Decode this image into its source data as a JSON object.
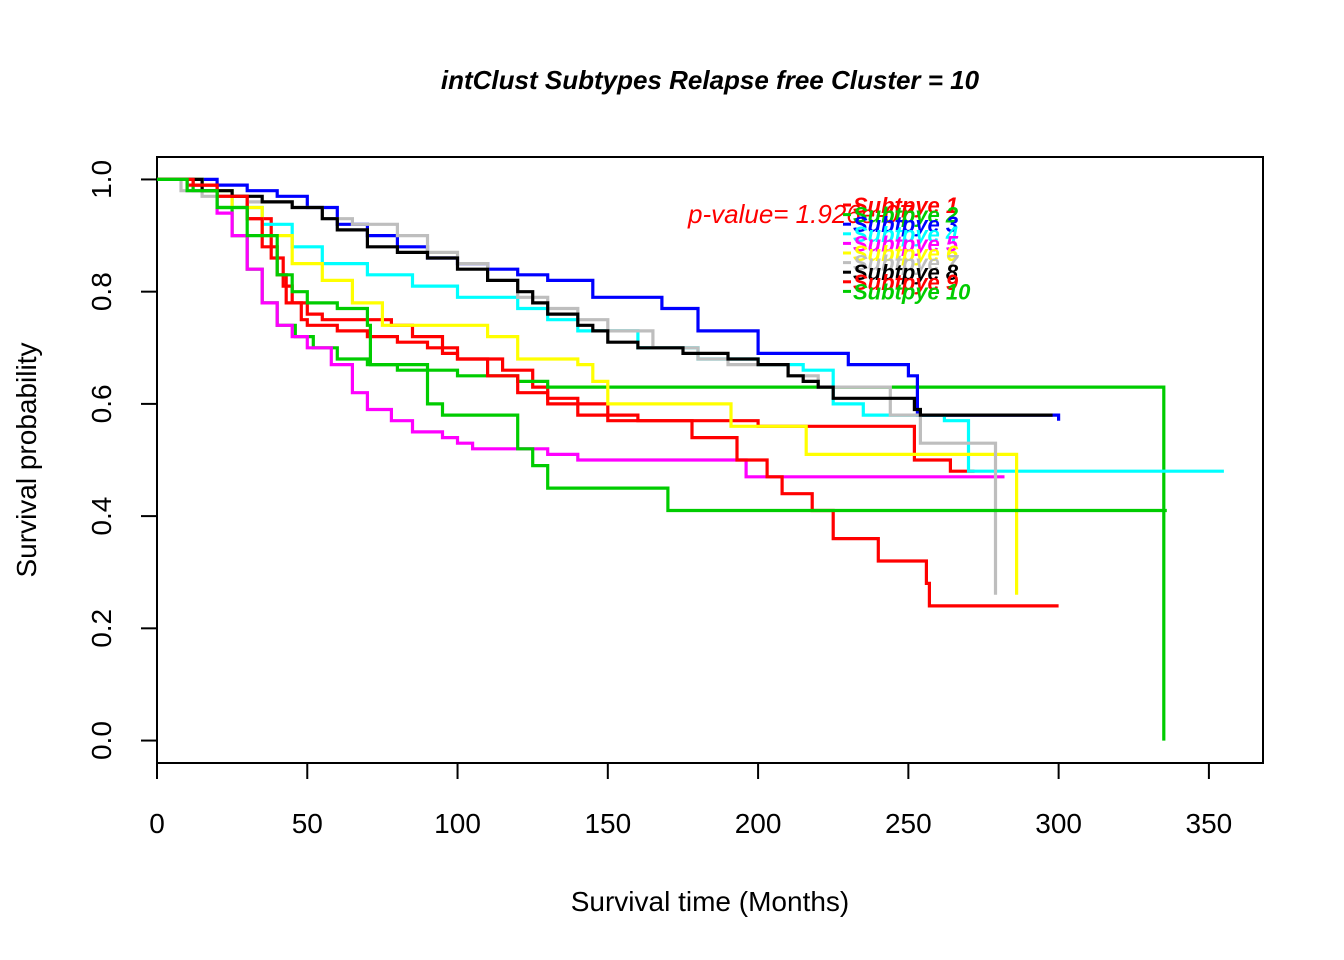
{
  "chart_data": {
    "type": "line",
    "title": "intClust Subtypes Relapse free Cluster = 10",
    "xlabel": "Survival time (Months)",
    "ylabel": "Survival probability",
    "xlim": [
      0,
      368
    ],
    "ylim": [
      -0.04,
      1.04
    ],
    "x_ticks": [
      "0",
      "50",
      "100",
      "150",
      "200",
      "250",
      "300",
      "350"
    ],
    "y_ticks": [
      "0.0",
      "0.2",
      "0.4",
      "0.6",
      "0.8",
      "1.0"
    ],
    "annotation": {
      "text": "p-value= 1.926e-07",
      "color": "#ff0000"
    },
    "legend": "top-right",
    "series": [
      {
        "name": "Subtpye 1",
        "color": "#ff0000",
        "points": [
          [
            0,
            1.0
          ],
          [
            10,
            0.99
          ],
          [
            20,
            0.97
          ],
          [
            30,
            0.93
          ],
          [
            38,
            0.86
          ],
          [
            42,
            0.81
          ],
          [
            45,
            0.78
          ],
          [
            50,
            0.76
          ],
          [
            55,
            0.75
          ],
          [
            70,
            0.75
          ],
          [
            78,
            0.74
          ],
          [
            85,
            0.72
          ],
          [
            95,
            0.69
          ],
          [
            100,
            0.68
          ],
          [
            115,
            0.66
          ],
          [
            125,
            0.63
          ],
          [
            130,
            0.61
          ],
          [
            140,
            0.6
          ],
          [
            150,
            0.58
          ],
          [
            160,
            0.57
          ],
          [
            200,
            0.56
          ],
          [
            210,
            0.56
          ],
          [
            240,
            0.56
          ],
          [
            252,
            0.5
          ],
          [
            264,
            0.48
          ],
          [
            272,
            0.48
          ]
        ]
      },
      {
        "name": "Subtpye 2",
        "color": "#00cc00",
        "points": [
          [
            0,
            1.0
          ],
          [
            12,
            0.98
          ],
          [
            20,
            0.95
          ],
          [
            25,
            0.9
          ],
          [
            30,
            0.84
          ],
          [
            35,
            0.78
          ],
          [
            40,
            0.74
          ],
          [
            46,
            0.72
          ],
          [
            52,
            0.7
          ],
          [
            60,
            0.68
          ],
          [
            70,
            0.67
          ],
          [
            80,
            0.66
          ],
          [
            100,
            0.65
          ],
          [
            120,
            0.64
          ],
          [
            130,
            0.63
          ],
          [
            200,
            0.63
          ],
          [
            335,
            0.63
          ],
          [
            335,
            0.0
          ]
        ]
      },
      {
        "name": "Subtpye 3",
        "color": "#0000ff",
        "points": [
          [
            0,
            1.0
          ],
          [
            20,
            0.99
          ],
          [
            30,
            0.98
          ],
          [
            40,
            0.97
          ],
          [
            50,
            0.95
          ],
          [
            60,
            0.92
          ],
          [
            70,
            0.9
          ],
          [
            80,
            0.88
          ],
          [
            90,
            0.86
          ],
          [
            100,
            0.85
          ],
          [
            110,
            0.84
          ],
          [
            120,
            0.83
          ],
          [
            130,
            0.82
          ],
          [
            145,
            0.79
          ],
          [
            168,
            0.77
          ],
          [
            180,
            0.73
          ],
          [
            200,
            0.69
          ],
          [
            230,
            0.67
          ],
          [
            250,
            0.65
          ],
          [
            253,
            0.58
          ],
          [
            300,
            0.57
          ]
        ]
      },
      {
        "name": "Subtpye 4",
        "color": "#00ffff",
        "points": [
          [
            0,
            1.0
          ],
          [
            15,
            0.98
          ],
          [
            25,
            0.95
          ],
          [
            35,
            0.92
          ],
          [
            45,
            0.88
          ],
          [
            55,
            0.85
          ],
          [
            70,
            0.83
          ],
          [
            85,
            0.81
          ],
          [
            100,
            0.79
          ],
          [
            120,
            0.77
          ],
          [
            130,
            0.75
          ],
          [
            140,
            0.73
          ],
          [
            160,
            0.7
          ],
          [
            180,
            0.68
          ],
          [
            200,
            0.67
          ],
          [
            215,
            0.66
          ],
          [
            225,
            0.6
          ],
          [
            235,
            0.58
          ],
          [
            250,
            0.58
          ],
          [
            262,
            0.57
          ],
          [
            270,
            0.48
          ],
          [
            355,
            0.48
          ]
        ]
      },
      {
        "name": "Subtpye 5",
        "color": "#ff00ff",
        "points": [
          [
            0,
            1.0
          ],
          [
            10,
            0.98
          ],
          [
            20,
            0.94
          ],
          [
            25,
            0.9
          ],
          [
            30,
            0.84
          ],
          [
            35,
            0.78
          ],
          [
            40,
            0.74
          ],
          [
            45,
            0.72
          ],
          [
            50,
            0.7
          ],
          [
            58,
            0.67
          ],
          [
            65,
            0.62
          ],
          [
            70,
            0.59
          ],
          [
            78,
            0.57
          ],
          [
            85,
            0.55
          ],
          [
            95,
            0.54
          ],
          [
            100,
            0.53
          ],
          [
            105,
            0.52
          ],
          [
            120,
            0.52
          ],
          [
            130,
            0.51
          ],
          [
            140,
            0.5
          ],
          [
            195,
            0.5
          ],
          [
            196,
            0.47
          ],
          [
            282,
            0.47
          ]
        ]
      },
      {
        "name": "Subtpye 6",
        "color": "#ffff00",
        "points": [
          [
            0,
            1.0
          ],
          [
            15,
            0.98
          ],
          [
            25,
            0.95
          ],
          [
            35,
            0.9
          ],
          [
            45,
            0.85
          ],
          [
            55,
            0.82
          ],
          [
            65,
            0.78
          ],
          [
            75,
            0.74
          ],
          [
            87,
            0.74
          ],
          [
            95,
            0.74
          ],
          [
            110,
            0.72
          ],
          [
            120,
            0.68
          ],
          [
            140,
            0.67
          ],
          [
            145,
            0.64
          ],
          [
            150,
            0.6
          ],
          [
            190,
            0.6
          ],
          [
            191,
            0.56
          ],
          [
            215,
            0.56
          ],
          [
            216,
            0.51
          ],
          [
            285,
            0.51
          ],
          [
            286,
            0.26
          ]
        ]
      },
      {
        "name": "Subtpye 7",
        "color": "#bebebe",
        "points": [
          [
            0,
            1.0
          ],
          [
            8,
            0.98
          ],
          [
            15,
            0.97
          ],
          [
            30,
            0.96
          ],
          [
            45,
            0.95
          ],
          [
            55,
            0.93
          ],
          [
            65,
            0.92
          ],
          [
            80,
            0.9
          ],
          [
            90,
            0.87
          ],
          [
            100,
            0.85
          ],
          [
            110,
            0.82
          ],
          [
            120,
            0.79
          ],
          [
            130,
            0.77
          ],
          [
            140,
            0.75
          ],
          [
            150,
            0.73
          ],
          [
            165,
            0.7
          ],
          [
            180,
            0.68
          ],
          [
            190,
            0.67
          ],
          [
            210,
            0.65
          ],
          [
            220,
            0.63
          ],
          [
            243,
            0.63
          ],
          [
            244,
            0.58
          ],
          [
            253,
            0.58
          ],
          [
            254,
            0.53
          ],
          [
            278,
            0.53
          ],
          [
            279,
            0.26
          ]
        ]
      },
      {
        "name": "Subtpye 8",
        "color": "#000000",
        "points": [
          [
            0,
            1.0
          ],
          [
            15,
            0.98
          ],
          [
            25,
            0.97
          ],
          [
            35,
            0.96
          ],
          [
            45,
            0.95
          ],
          [
            55,
            0.93
          ],
          [
            60,
            0.91
          ],
          [
            70,
            0.88
          ],
          [
            80,
            0.87
          ],
          [
            90,
            0.86
          ],
          [
            100,
            0.84
          ],
          [
            110,
            0.82
          ],
          [
            120,
            0.8
          ],
          [
            125,
            0.78
          ],
          [
            130,
            0.76
          ],
          [
            140,
            0.74
          ],
          [
            145,
            0.73
          ],
          [
            150,
            0.71
          ],
          [
            160,
            0.7
          ],
          [
            175,
            0.69
          ],
          [
            190,
            0.68
          ],
          [
            200,
            0.67
          ],
          [
            210,
            0.65
          ],
          [
            215,
            0.64
          ],
          [
            220,
            0.63
          ],
          [
            225,
            0.61
          ],
          [
            240,
            0.61
          ],
          [
            252,
            0.59
          ],
          [
            254,
            0.58
          ],
          [
            298,
            0.58
          ]
        ]
      },
      {
        "name": "Subtpye 9",
        "color": "#ff0000",
        "points": [
          [
            0,
            1.0
          ],
          [
            12,
            0.99
          ],
          [
            20,
            0.97
          ],
          [
            30,
            0.93
          ],
          [
            35,
            0.88
          ],
          [
            40,
            0.83
          ],
          [
            43,
            0.78
          ],
          [
            48,
            0.75
          ],
          [
            50,
            0.74
          ],
          [
            60,
            0.73
          ],
          [
            70,
            0.72
          ],
          [
            80,
            0.71
          ],
          [
            90,
            0.7
          ],
          [
            100,
            0.68
          ],
          [
            110,
            0.65
          ],
          [
            120,
            0.62
          ],
          [
            130,
            0.6
          ],
          [
            140,
            0.58
          ],
          [
            150,
            0.57
          ],
          [
            178,
            0.56
          ],
          [
            178,
            0.54
          ],
          [
            192,
            0.54
          ],
          [
            193,
            0.5
          ],
          [
            203,
            0.47
          ],
          [
            208,
            0.44
          ],
          [
            218,
            0.41
          ],
          [
            225,
            0.36
          ],
          [
            240,
            0.32
          ],
          [
            256,
            0.28
          ],
          [
            257,
            0.24
          ],
          [
            300,
            0.24
          ]
        ]
      },
      {
        "name": "Subtpye 10",
        "color": "#00cc00",
        "points": [
          [
            0,
            1.0
          ],
          [
            10,
            0.98
          ],
          [
            20,
            0.95
          ],
          [
            30,
            0.9
          ],
          [
            40,
            0.83
          ],
          [
            45,
            0.8
          ],
          [
            50,
            0.78
          ],
          [
            60,
            0.77
          ],
          [
            70,
            0.74
          ],
          [
            71,
            0.67
          ],
          [
            85,
            0.67
          ],
          [
            90,
            0.6
          ],
          [
            95,
            0.58
          ],
          [
            110,
            0.58
          ],
          [
            120,
            0.52
          ],
          [
            125,
            0.49
          ],
          [
            130,
            0.45
          ],
          [
            160,
            0.45
          ],
          [
            170,
            0.41
          ],
          [
            336,
            0.41
          ]
        ]
      }
    ]
  }
}
